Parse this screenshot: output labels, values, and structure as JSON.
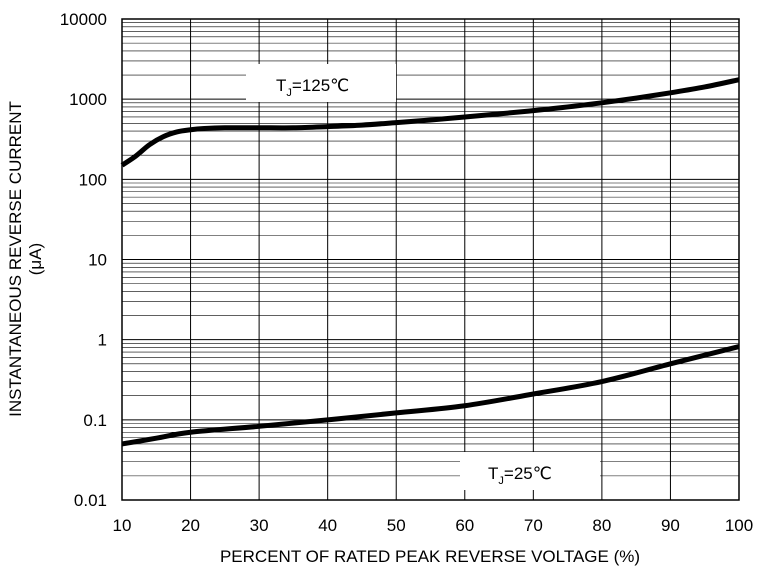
{
  "chart_data": {
    "type": "line",
    "title": "",
    "xlabel": "PERCENT OF RATED PEAK REVERSE VOLTAGE (%)",
    "ylabel_line1": "INSTANTANEOUS REVERSE CURRENT",
    "ylabel_line2": "(μA)",
    "xlim": [
      10,
      100
    ],
    "ylim": [
      0.01,
      10000
    ],
    "yscale": "log",
    "grid": true,
    "x_ticks": [
      10,
      20,
      30,
      40,
      50,
      60,
      70,
      80,
      90,
      100
    ],
    "x_tick_labels": [
      "10",
      "20",
      "30",
      "40",
      "50",
      "60",
      "70",
      "80",
      "90",
      "100"
    ],
    "y_ticks": [
      0.01,
      0.1,
      1,
      10,
      100,
      1000,
      10000
    ],
    "y_tick_labels": [
      "0.01",
      "0.1",
      "1",
      "10",
      "100",
      "1000",
      "10000"
    ],
    "series": [
      {
        "label_main": "T",
        "label_sub": "J",
        "label_rest": "=125℃",
        "color": "#000000",
        "x": [
          10,
          12,
          14,
          16,
          18,
          20,
          22,
          25,
          30,
          35,
          40,
          45,
          50,
          55,
          60,
          65,
          70,
          75,
          80,
          85,
          90,
          95,
          100
        ],
        "values": [
          150,
          195,
          270,
          340,
          390,
          415,
          430,
          440,
          440,
          440,
          455,
          475,
          510,
          550,
          600,
          655,
          720,
          800,
          900,
          1030,
          1200,
          1420,
          1750
        ]
      },
      {
        "label_main": "T",
        "label_sub": "J",
        "label_rest": "=25℃",
        "color": "#000000",
        "x": [
          10,
          15,
          20,
          30,
          40,
          50,
          60,
          70,
          80,
          90,
          100
        ],
        "values": [
          0.05,
          0.059,
          0.07,
          0.083,
          0.1,
          0.122,
          0.15,
          0.21,
          0.3,
          0.5,
          0.82
        ]
      }
    ]
  }
}
